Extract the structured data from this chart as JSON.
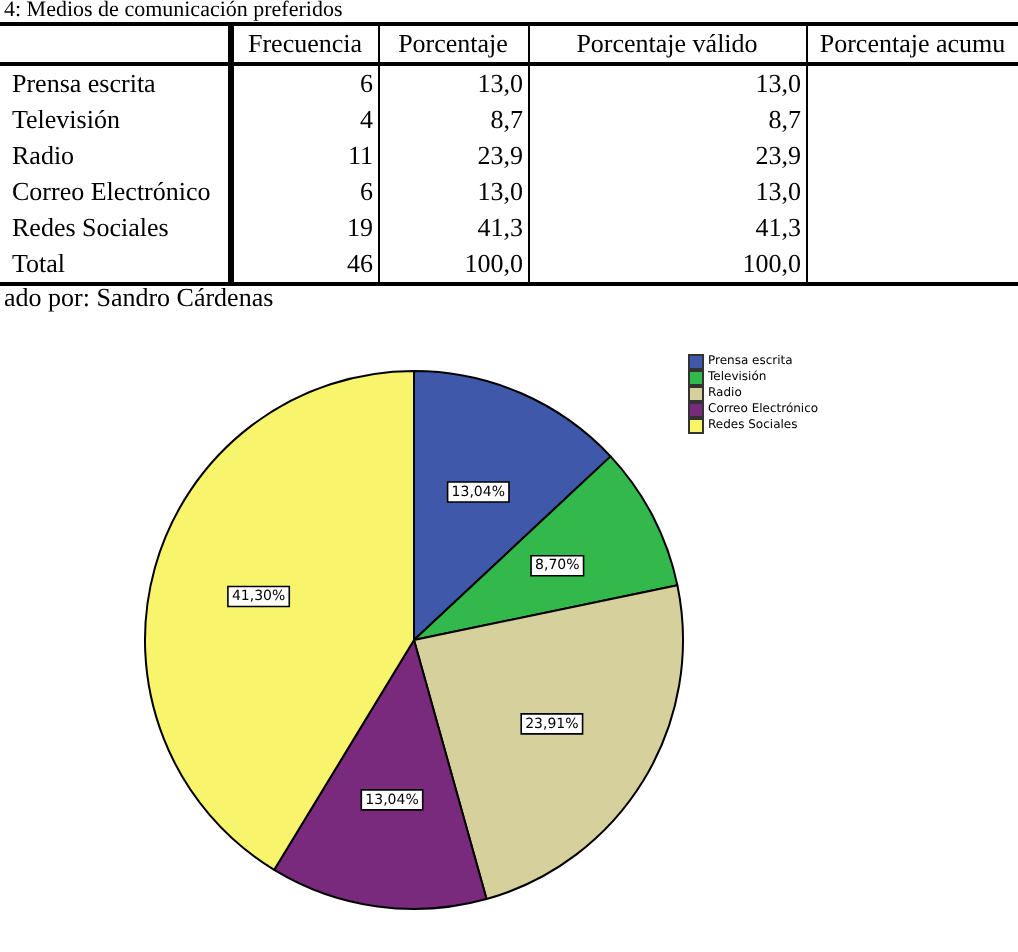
{
  "chart_data": {
    "type": "pie",
    "title": "4: Medios de comunicación preferidos",
    "categories": [
      "Prensa escrita",
      "Televisión",
      "Radio",
      "Correo Electrónico",
      "Redes Sociales"
    ],
    "values": [
      13.04,
      8.7,
      23.91,
      13.04,
      41.3
    ],
    "value_labels": [
      "13,04%",
      "8,70%",
      "23,91%",
      "13,04%",
      "41,30%"
    ],
    "colors": [
      "#3f58aa",
      "#33b84c",
      "#d5d09c",
      "#7a2a7c",
      "#f8f46c"
    ],
    "legend": "top right",
    "annotations": [
      "\tFrecuencia\tPorcentaje\tPorcentaje válido\tPorcentaje acumu",
      "Prensa escrita\t6\t13,0\t13,0\t",
      "Televisión\t4\t8,7\t8,7\t",
      "Radio\t11\t23,9\t23,9\t",
      "Correo Electrónico\t6\t13,0\t13,0\t",
      "Redes Sociales\t19\t41,3\t41,3\t",
      "Total\t46\t100,0\t100,0\t",
      "ado por: Sandro Cárdenas"
    ]
  }
}
